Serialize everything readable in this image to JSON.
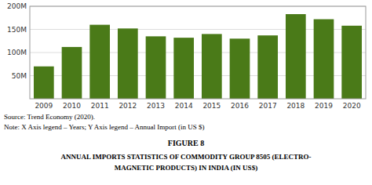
{
  "chart_data": {
    "type": "bar",
    "title": "FIGURE 8",
    "categories": [
      "2009",
      "2010",
      "2011",
      "2012",
      "2013",
      "2014",
      "2015",
      "2016",
      "2017",
      "2018",
      "2019",
      "2020"
    ],
    "values": [
      70000000,
      112000000,
      160000000,
      152000000,
      135000000,
      132000000,
      140000000,
      130000000,
      137000000,
      183000000,
      172000000,
      158000000
    ],
    "color": "#4a7a18",
    "ylim": [
      0,
      200000000
    ],
    "yticks": [
      {
        "value": 50000000,
        "label": "50M"
      },
      {
        "value": 100000000,
        "label": "100M"
      },
      {
        "value": 150000000,
        "label": "150M"
      },
      {
        "value": 200000000,
        "label": "200M"
      }
    ],
    "grid": true,
    "annotations": [
      "Source: Trend Economy (2020).",
      "Note: X Axis legend – Years; Y Axis legend – Annual Import (in US $)",
      "ANNUAL IMPORTS STATISTICS OF COMMODITY GROUP 8505 (ELECTRO-",
      "MAGNETIC PRODUCTS) IN INDIA (IN US$)"
    ]
  }
}
